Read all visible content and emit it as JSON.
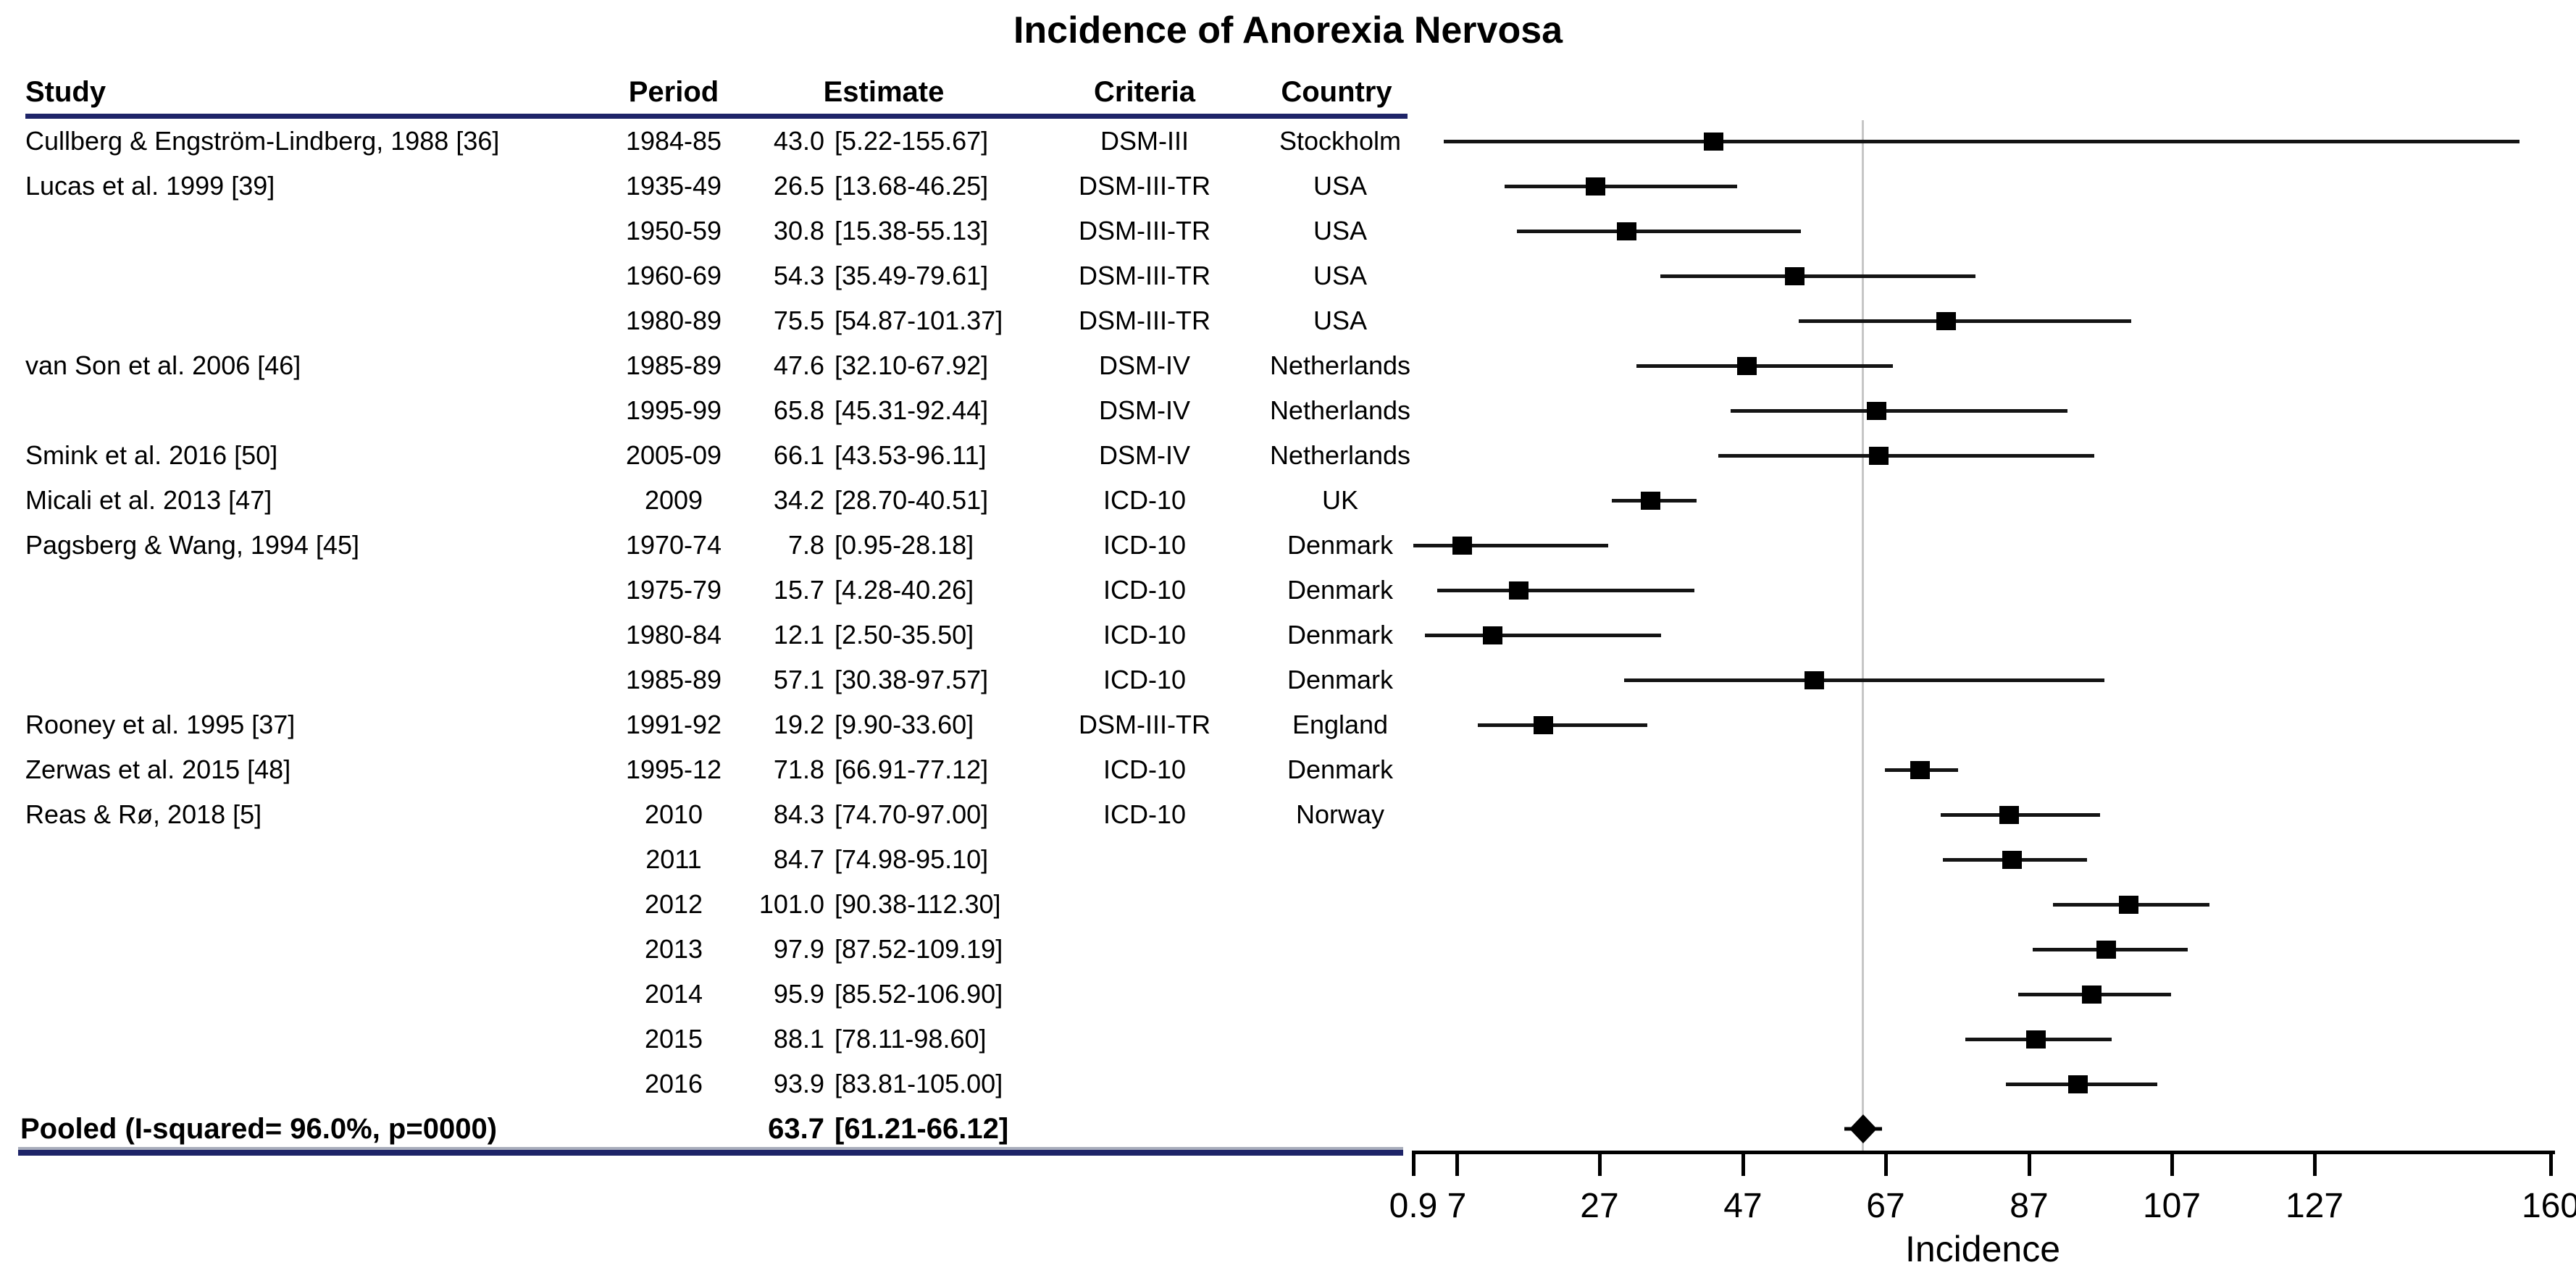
{
  "title": "Incidence of Anorexia Nervosa",
  "columns": {
    "study": "Study",
    "period": "Period",
    "estimate": "Estimate",
    "criteria": "Criteria",
    "country": "Country"
  },
  "rows": [
    {
      "study": "Cullberg & Engström-Lindberg, 1988 [36]",
      "period": "1984-85",
      "value": "43.0",
      "ci": "[5.22-155.67]",
      "criteria": "DSM-III",
      "country": "Stockholm",
      "est": 43.0,
      "lo": 5.22,
      "hi": 155.67
    },
    {
      "study": "Lucas et al. 1999 [39]",
      "period": "1935-49",
      "value": "26.5",
      "ci": "[13.68-46.25]",
      "criteria": "DSM-III-TR",
      "country": "USA",
      "est": 26.5,
      "lo": 13.68,
      "hi": 46.25
    },
    {
      "study": "",
      "period": "1950-59",
      "value": "30.8",
      "ci": "[15.38-55.13]",
      "criteria": "DSM-III-TR",
      "country": "USA",
      "est": 30.8,
      "lo": 15.38,
      "hi": 55.13
    },
    {
      "study": "",
      "period": "1960-69",
      "value": "54.3",
      "ci": "[35.49-79.61]",
      "criteria": "DSM-III-TR",
      "country": "USA",
      "est": 54.3,
      "lo": 35.49,
      "hi": 79.61
    },
    {
      "study": "",
      "period": "1980-89",
      "value": "75.5",
      "ci": "[54.87-101.37]",
      "criteria": "DSM-III-TR",
      "country": "USA",
      "est": 75.5,
      "lo": 54.87,
      "hi": 101.37
    },
    {
      "study": "van Son et al. 2006 [46]",
      "period": "1985-89",
      "value": "47.6",
      "ci": "[32.10-67.92]",
      "criteria": "DSM-IV",
      "country": "Netherlands",
      "est": 47.6,
      "lo": 32.1,
      "hi": 67.92
    },
    {
      "study": "",
      "period": "1995-99",
      "value": "65.8",
      "ci": "[45.31-92.44]",
      "criteria": "DSM-IV",
      "country": "Netherlands",
      "est": 65.8,
      "lo": 45.31,
      "hi": 92.44
    },
    {
      "study": "Smink et al. 2016 [50]",
      "period": "2005-09",
      "value": "66.1",
      "ci": "[43.53-96.11]",
      "criteria": "DSM-IV",
      "country": "Netherlands",
      "est": 66.1,
      "lo": 43.53,
      "hi": 96.11
    },
    {
      "study": "Micali et al. 2013 [47]",
      "period": "2009",
      "value": "34.2",
      "ci": "[28.70-40.51]",
      "criteria": "ICD-10",
      "country": "UK",
      "est": 34.2,
      "lo": 28.7,
      "hi": 40.51
    },
    {
      "study": "Pagsberg & Wang, 1994 [45]",
      "period": "1970-74",
      "value": "7.8",
      "ci": "[0.95-28.18]",
      "criteria": "ICD-10",
      "country": "Denmark",
      "est": 7.8,
      "lo": 0.95,
      "hi": 28.18
    },
    {
      "study": "",
      "period": "1975-79",
      "value": "15.7",
      "ci": "[4.28-40.26]",
      "criteria": "ICD-10",
      "country": "Denmark",
      "est": 15.7,
      "lo": 4.28,
      "hi": 40.26
    },
    {
      "study": "",
      "period": "1980-84",
      "value": "12.1",
      "ci": "[2.50-35.50]",
      "criteria": "ICD-10",
      "country": "Denmark",
      "est": 12.1,
      "lo": 2.5,
      "hi": 35.5
    },
    {
      "study": "",
      "period": "1985-89",
      "value": "57.1",
      "ci": "[30.38-97.57]",
      "criteria": "ICD-10",
      "country": "Denmark",
      "est": 57.1,
      "lo": 30.38,
      "hi": 97.57
    },
    {
      "study": "Rooney et al. 1995 [37]",
      "period": "1991-92",
      "value": "19.2",
      "ci": "[9.90-33.60]",
      "criteria": "DSM-III-TR",
      "country": "England",
      "est": 19.2,
      "lo": 9.9,
      "hi": 33.6
    },
    {
      "study": "Zerwas et al. 2015 [48]",
      "period": "1995-12",
      "value": "71.8",
      "ci": "[66.91-77.12]",
      "criteria": "ICD-10",
      "country": "Denmark",
      "est": 71.8,
      "lo": 66.91,
      "hi": 77.12
    },
    {
      "study": "Reas & Rø, 2018 [5]",
      "period": "2010",
      "value": "84.3",
      "ci": "[74.70-97.00]",
      "criteria": "ICD-10",
      "country": "Norway",
      "est": 84.3,
      "lo": 74.7,
      "hi": 97.0
    },
    {
      "study": "",
      "period": "2011",
      "value": "84.7",
      "ci": "[74.98-95.10]",
      "criteria": "",
      "country": "",
      "est": 84.7,
      "lo": 74.98,
      "hi": 95.1
    },
    {
      "study": "",
      "period": "2012",
      "value": "101.0",
      "ci": "[90.38-112.30]",
      "criteria": "",
      "country": "",
      "est": 101.0,
      "lo": 90.38,
      "hi": 112.3
    },
    {
      "study": "",
      "period": "2013",
      "value": "97.9",
      "ci": "[87.52-109.19]",
      "criteria": "",
      "country": "",
      "est": 97.9,
      "lo": 87.52,
      "hi": 109.19
    },
    {
      "study": "",
      "period": "2014",
      "value": "95.9",
      "ci": "[85.52-106.90]",
      "criteria": "",
      "country": "",
      "est": 95.9,
      "lo": 85.52,
      "hi": 106.9
    },
    {
      "study": "",
      "period": "2015",
      "value": "88.1",
      "ci": "[78.11-98.60]",
      "criteria": "",
      "country": "",
      "est": 88.1,
      "lo": 78.11,
      "hi": 98.6
    },
    {
      "study": "",
      "period": "2016",
      "value": "93.9",
      "ci": "[83.81-105.00]",
      "criteria": "",
      "country": "",
      "est": 93.9,
      "lo": 83.81,
      "hi": 105.0
    }
  ],
  "pooled": {
    "label": "Pooled (I-squared= 96.0%, p=0000)",
    "value": "63.7",
    "ci": "[61.21-66.12]",
    "est": 63.7,
    "lo": 61.21,
    "hi": 66.12
  },
  "axis": {
    "ticks": [
      {
        "v": 0.9,
        "label": "0.9"
      },
      {
        "v": 7,
        "label": "7"
      },
      {
        "v": 27,
        "label": "27"
      },
      {
        "v": 47,
        "label": "47"
      },
      {
        "v": 67,
        "label": "67"
      },
      {
        "v": 87,
        "label": "87"
      },
      {
        "v": 107,
        "label": "107"
      },
      {
        "v": 127,
        "label": "127"
      },
      {
        "v": 160,
        "label": "160"
      }
    ],
    "xlabel": "Incidence",
    "min": 0.9,
    "max": 160
  },
  "colors": {
    "rule_navy": "#1e2468",
    "rule_gray": "#a9aebc",
    "reference_line_gray": "#c6c6c6",
    "marker_black": "#000000"
  },
  "chart_data": {
    "type": "scatter",
    "variant": "forest-plot",
    "title": "Incidence of Anorexia Nervosa",
    "xlabel": "Incidence",
    "xlim": [
      0.9,
      160
    ],
    "xticks": [
      0.9,
      7,
      27,
      47,
      67,
      87,
      107,
      127,
      160
    ],
    "grid": false,
    "reference_line_x": 63.7,
    "series": [
      {
        "study": "Cullberg & Engström-Lindberg, 1988 [36]",
        "period": "1984-85",
        "estimate": 43.0,
        "ci_low": 5.22,
        "ci_high": 155.67,
        "criteria": "DSM-III",
        "country": "Stockholm"
      },
      {
        "study": "Lucas et al. 1999 [39]",
        "period": "1935-49",
        "estimate": 26.5,
        "ci_low": 13.68,
        "ci_high": 46.25,
        "criteria": "DSM-III-TR",
        "country": "USA"
      },
      {
        "study": "Lucas et al. 1999 [39]",
        "period": "1950-59",
        "estimate": 30.8,
        "ci_low": 15.38,
        "ci_high": 55.13,
        "criteria": "DSM-III-TR",
        "country": "USA"
      },
      {
        "study": "Lucas et al. 1999 [39]",
        "period": "1960-69",
        "estimate": 54.3,
        "ci_low": 35.49,
        "ci_high": 79.61,
        "criteria": "DSM-III-TR",
        "country": "USA"
      },
      {
        "study": "Lucas et al. 1999 [39]",
        "period": "1980-89",
        "estimate": 75.5,
        "ci_low": 54.87,
        "ci_high": 101.37,
        "criteria": "DSM-III-TR",
        "country": "USA"
      },
      {
        "study": "van Son et al. 2006 [46]",
        "period": "1985-89",
        "estimate": 47.6,
        "ci_low": 32.1,
        "ci_high": 67.92,
        "criteria": "DSM-IV",
        "country": "Netherlands"
      },
      {
        "study": "van Son et al. 2006 [46]",
        "period": "1995-99",
        "estimate": 65.8,
        "ci_low": 45.31,
        "ci_high": 92.44,
        "criteria": "DSM-IV",
        "country": "Netherlands"
      },
      {
        "study": "Smink et al. 2016 [50]",
        "period": "2005-09",
        "estimate": 66.1,
        "ci_low": 43.53,
        "ci_high": 96.11,
        "criteria": "DSM-IV",
        "country": "Netherlands"
      },
      {
        "study": "Micali et al. 2013 [47]",
        "period": "2009",
        "estimate": 34.2,
        "ci_low": 28.7,
        "ci_high": 40.51,
        "criteria": "ICD-10",
        "country": "UK"
      },
      {
        "study": "Pagsberg & Wang, 1994 [45]",
        "period": "1970-74",
        "estimate": 7.8,
        "ci_low": 0.95,
        "ci_high": 28.18,
        "criteria": "ICD-10",
        "country": "Denmark"
      },
      {
        "study": "Pagsberg & Wang, 1994 [45]",
        "period": "1975-79",
        "estimate": 15.7,
        "ci_low": 4.28,
        "ci_high": 40.26,
        "criteria": "ICD-10",
        "country": "Denmark"
      },
      {
        "study": "Pagsberg & Wang, 1994 [45]",
        "period": "1980-84",
        "estimate": 12.1,
        "ci_low": 2.5,
        "ci_high": 35.5,
        "criteria": "ICD-10",
        "country": "Denmark"
      },
      {
        "study": "Pagsberg & Wang, 1994 [45]",
        "period": "1985-89",
        "estimate": 57.1,
        "ci_low": 30.38,
        "ci_high": 97.57,
        "criteria": "ICD-10",
        "country": "Denmark"
      },
      {
        "study": "Rooney et al. 1995 [37]",
        "period": "1991-92",
        "estimate": 19.2,
        "ci_low": 9.9,
        "ci_high": 33.6,
        "criteria": "DSM-III-TR",
        "country": "England"
      },
      {
        "study": "Zerwas et al. 2015 [48]",
        "period": "1995-12",
        "estimate": 71.8,
        "ci_low": 66.91,
        "ci_high": 77.12,
        "criteria": "ICD-10",
        "country": "Denmark"
      },
      {
        "study": "Reas & Rø, 2018 [5]",
        "period": "2010",
        "estimate": 84.3,
        "ci_low": 74.7,
        "ci_high": 97.0,
        "criteria": "ICD-10",
        "country": "Norway"
      },
      {
        "study": "Reas & Rø, 2018 [5]",
        "period": "2011",
        "estimate": 84.7,
        "ci_low": 74.98,
        "ci_high": 95.1,
        "criteria": "",
        "country": ""
      },
      {
        "study": "Reas & Rø, 2018 [5]",
        "period": "2012",
        "estimate": 101.0,
        "ci_low": 90.38,
        "ci_high": 112.3,
        "criteria": "",
        "country": ""
      },
      {
        "study": "Reas & Rø, 2018 [5]",
        "period": "2013",
        "estimate": 97.9,
        "ci_low": 87.52,
        "ci_high": 109.19,
        "criteria": "",
        "country": ""
      },
      {
        "study": "Reas & Rø, 2018 [5]",
        "period": "2014",
        "estimate": 95.9,
        "ci_low": 85.52,
        "ci_high": 106.9,
        "criteria": "",
        "country": ""
      },
      {
        "study": "Reas & Rø, 2018 [5]",
        "period": "2015",
        "estimate": 88.1,
        "ci_low": 78.11,
        "ci_high": 98.6,
        "criteria": "",
        "country": ""
      },
      {
        "study": "Reas & Rø, 2018 [5]",
        "period": "2016",
        "estimate": 93.9,
        "ci_low": 83.81,
        "ci_high": 105.0,
        "criteria": "",
        "country": ""
      }
    ],
    "pooled": {
      "label": "Pooled (I-squared= 96.0%, p=0000)",
      "estimate": 63.7,
      "ci_low": 61.21,
      "ci_high": 66.12
    }
  }
}
